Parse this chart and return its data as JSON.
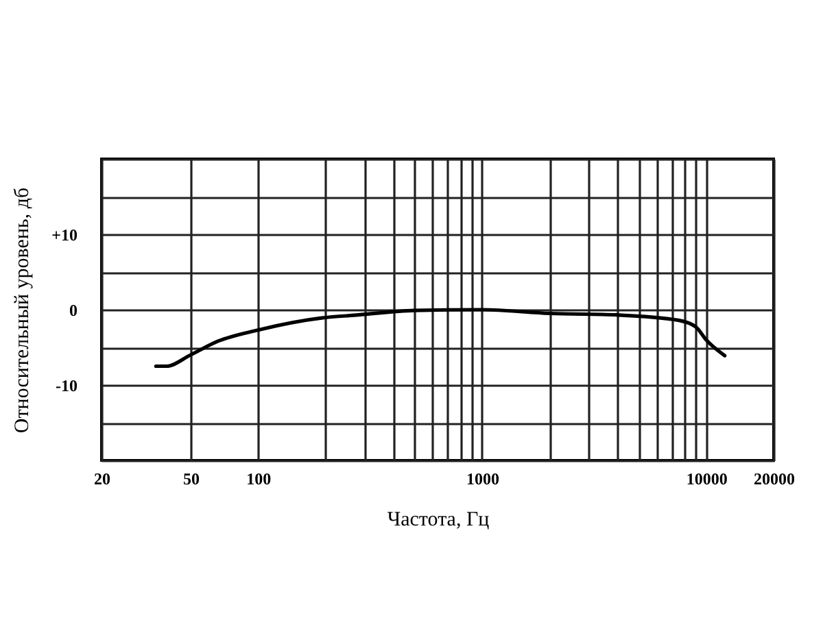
{
  "chart_data": {
    "type": "line",
    "xlabel": "Частота, Гц",
    "ylabel": "Относительный уровень, дб",
    "x": [
      35,
      39,
      50,
      66,
      100,
      192,
      280,
      500,
      1000,
      2000,
      4000,
      7500,
      9000,
      10000,
      12100
    ],
    "series": [
      {
        "color": "#000000",
        "values": [
          -7.5,
          -7.5,
          -6.0,
          -4.2,
          -2.7,
          -1.1,
          -0.7,
          -0.1,
          0,
          -0.5,
          -0.7,
          -1.4,
          -2.3,
          -4,
          -6.1
        ]
      }
    ],
    "xlim": [
      20,
      20000
    ],
    "ylim": [
      -20,
      20
    ],
    "log": "x",
    "xticks": [
      20,
      50,
      100,
      {
        "value": 200,
        "label": null
      },
      {
        "value": 300,
        "label": null
      },
      {
        "value": 400,
        "label": null
      },
      {
        "value": 500,
        "label": null
      },
      {
        "value": 600,
        "label": null
      },
      {
        "value": 700,
        "label": null
      },
      {
        "value": 800,
        "label": null
      },
      {
        "value": 900,
        "label": null
      },
      1000,
      {
        "value": 2000,
        "label": null
      },
      {
        "value": 3000,
        "label": null
      },
      {
        "value": 4000,
        "label": null
      },
      {
        "value": 5000,
        "label": null
      },
      {
        "value": 6000,
        "label": null
      },
      {
        "value": 7000,
        "label": null
      },
      {
        "value": 8000,
        "label": null
      },
      {
        "value": 9000,
        "label": null
      },
      10000,
      20000
    ],
    "yticks": [
      {
        "value": -20,
        "label": null
      },
      {
        "value": -15,
        "label": null
      },
      {
        "value": -10,
        "label": "-10"
      },
      {
        "value": -5,
        "label": null
      },
      0,
      {
        "value": 5,
        "label": null
      },
      {
        "value": 10,
        "label": "+10"
      },
      {
        "value": 15,
        "label": null
      },
      {
        "value": 20,
        "label": null
      }
    ],
    "grid": true,
    "marker": "none",
    "line_style": "solid"
  }
}
